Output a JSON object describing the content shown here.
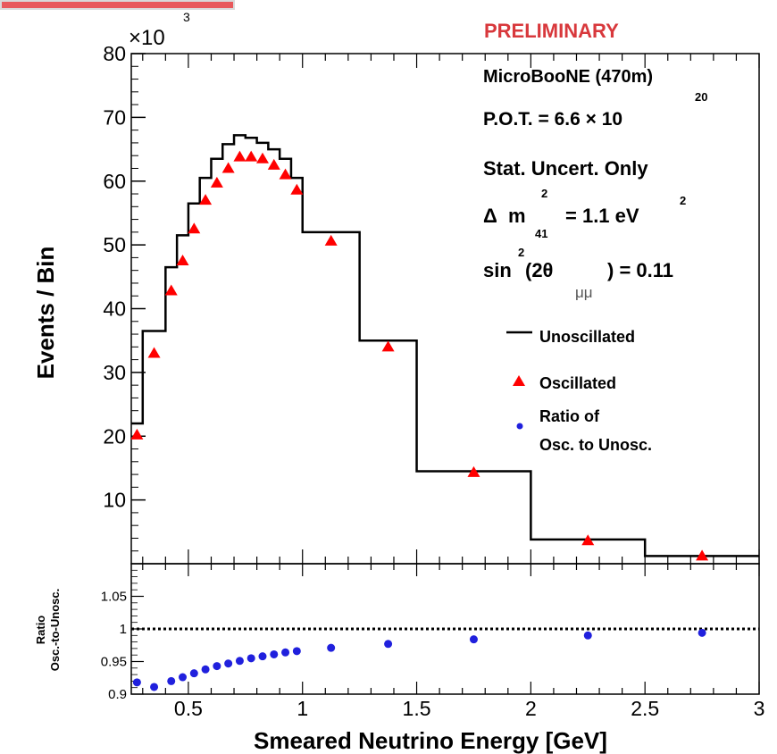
{
  "chart_data": [
    {
      "type": "line",
      "xlim": [
        0.25,
        3.0
      ],
      "ylim": [
        0,
        80
      ],
      "yscale_label": "×10",
      "yscale_exp": "3",
      "ylabel": "Events / Bin",
      "yticks": [
        10,
        20,
        30,
        40,
        50,
        60,
        70,
        80
      ],
      "annotations": {
        "preliminary": "PRELIMINARY",
        "experiment": "MicroBooNE (470m)",
        "pot_prefix": "P.O.T. = 6.6 × 10",
        "pot_exp": "20",
        "stat": "Stat. Uncert. Only",
        "dm_delta": "Δ",
        "dm_m": "m",
        "dm_sup": "2",
        "dm_sub": "41",
        "dm_value": "= 1.1 eV",
        "dm_unit_sup": "2",
        "sin_main": "sin",
        "sin_sup": "2",
        "sin_paren": "(2θ",
        "sin_sub": "μμ",
        "sin_value": ") = 0.11"
      },
      "legend": [
        {
          "label": "Unoscillated",
          "marker": "line",
          "color": "#000000"
        },
        {
          "label": "Oscillated",
          "marker": "triangle",
          "color": "#ff0000"
        },
        {
          "label": "Ratio of",
          "label2": "Osc. to Unosc.",
          "marker": "circle",
          "color": "#2020dd"
        }
      ],
      "series": [
        {
          "name": "Unoscillated",
          "style": "step",
          "color": "#000000",
          "bin_edges": [
            0.25,
            0.3,
            0.4,
            0.45,
            0.5,
            0.55,
            0.6,
            0.65,
            0.7,
            0.75,
            0.8,
            0.85,
            0.9,
            0.95,
            1.0,
            1.25,
            1.5,
            2.0,
            2.5,
            3.0
          ],
          "values": [
            22.0,
            36.5,
            46.5,
            51.5,
            56.5,
            60.5,
            63.5,
            65.8,
            67.2,
            66.8,
            66.0,
            65.0,
            63.5,
            60.5,
            52.0,
            35.0,
            14.5,
            3.8,
            1.2
          ]
        },
        {
          "name": "Oscillated",
          "style": "triangle",
          "color": "#ff0000",
          "x": [
            0.275,
            0.35,
            0.425,
            0.475,
            0.525,
            0.575,
            0.625,
            0.675,
            0.725,
            0.775,
            0.825,
            0.875,
            0.925,
            0.975,
            1.125,
            1.375,
            1.75,
            2.25,
            2.75
          ],
          "values": [
            20.2,
            33.0,
            42.8,
            47.5,
            52.5,
            57.0,
            59.7,
            62.0,
            63.8,
            63.8,
            63.5,
            62.5,
            61.0,
            58.6,
            50.6,
            34.0,
            14.3,
            3.6,
            1.2
          ]
        }
      ]
    },
    {
      "type": "scatter",
      "xlim": [
        0.25,
        3.0
      ],
      "ylim": [
        0.9,
        1.1
      ],
      "ylabel_line1": "Ratio",
      "ylabel_line2": "Osc.-to-Unosc.",
      "xlabel": "Smeared Neutrino Energy [GeV]",
      "yticks": [
        0.9,
        0.95,
        1,
        1.05
      ],
      "ytick_labels": [
        "0.9",
        "0.95",
        "1",
        "1.05"
      ],
      "xticks": [
        0.5,
        1,
        1.5,
        2,
        2.5,
        3
      ],
      "xtick_labels": [
        "0.5",
        "1",
        "1.5",
        "2",
        "2.5",
        "3"
      ],
      "reference_line": 1.0,
      "series": [
        {
          "name": "Ratio of Osc. to Unosc.",
          "color": "#2020dd",
          "x": [
            0.275,
            0.35,
            0.425,
            0.475,
            0.525,
            0.575,
            0.625,
            0.675,
            0.725,
            0.775,
            0.825,
            0.875,
            0.925,
            0.975,
            1.125,
            1.375,
            1.75,
            2.25,
            2.75
          ],
          "values": [
            0.918,
            0.911,
            0.92,
            0.926,
            0.932,
            0.938,
            0.943,
            0.947,
            0.951,
            0.955,
            0.958,
            0.961,
            0.964,
            0.966,
            0.971,
            0.977,
            0.984,
            0.99,
            0.994
          ]
        }
      ]
    }
  ]
}
